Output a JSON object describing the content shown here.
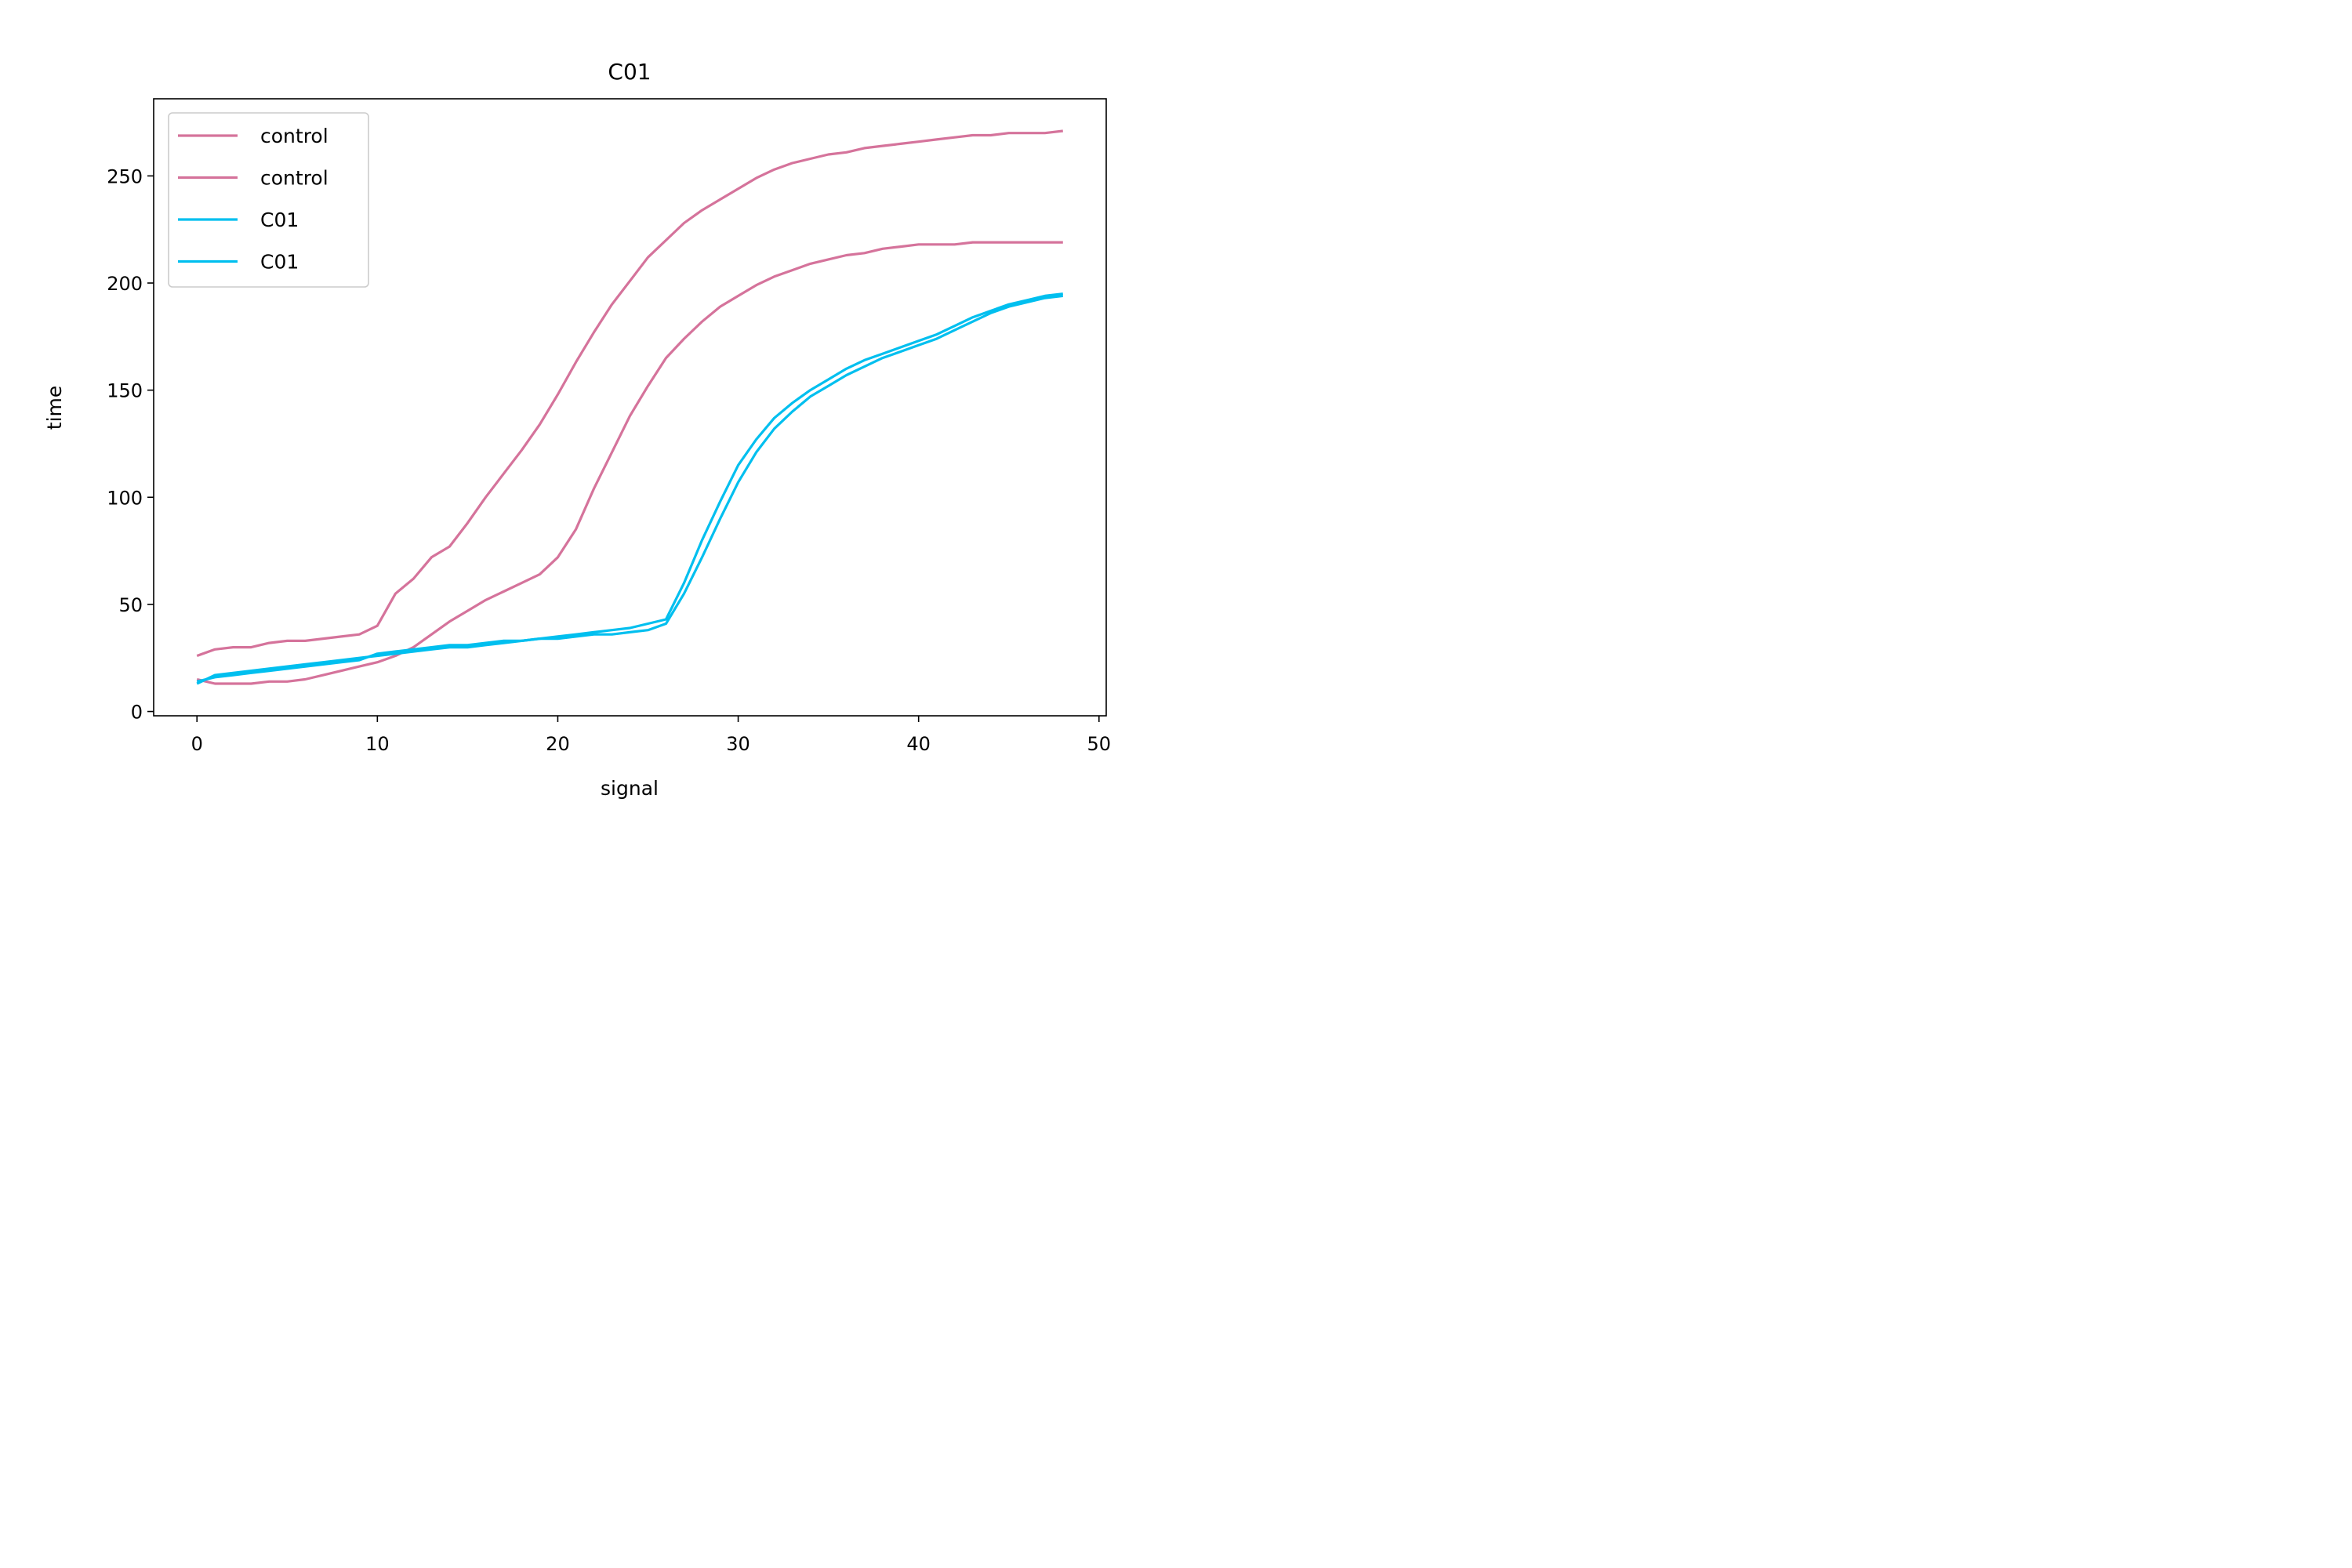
{
  "chart_data": {
    "type": "line",
    "title": "C01",
    "xlabel": "signal",
    "ylabel": "time",
    "xlim": [
      -2.4,
      50.4
    ],
    "ylim": [
      -2,
      286
    ],
    "xticks": [
      0,
      10,
      20,
      30,
      40,
      50
    ],
    "yticks": [
      0,
      50,
      100,
      150,
      200,
      250
    ],
    "grid": false,
    "legend_position": "top-left",
    "x": [
      0,
      1,
      2,
      3,
      4,
      5,
      6,
      7,
      8,
      9,
      10,
      11,
      12,
      13,
      14,
      15,
      16,
      17,
      18,
      19,
      20,
      21,
      22,
      23,
      24,
      25,
      26,
      27,
      28,
      29,
      30,
      31,
      32,
      33,
      34,
      35,
      36,
      37,
      38,
      39,
      40,
      41,
      42,
      43,
      44,
      45,
      46,
      47,
      48
    ],
    "series": [
      {
        "name": "control",
        "color": "#d5739b",
        "values": [
          26,
          29,
          30,
          30,
          32,
          33,
          33,
          34,
          35,
          36,
          40,
          55,
          62,
          72,
          77,
          88,
          100,
          111,
          122,
          134,
          148,
          163,
          177,
          190,
          201,
          212,
          220,
          228,
          234,
          239,
          244,
          249,
          253,
          256,
          258,
          260,
          261,
          263,
          264,
          265,
          266,
          267,
          268,
          269,
          269,
          270,
          270,
          270,
          271
        ]
      },
      {
        "name": "control",
        "color": "#d5739b",
        "values": [
          15,
          13,
          13,
          13,
          14,
          14,
          15,
          17,
          19,
          21,
          23,
          26,
          30,
          36,
          42,
          47,
          52,
          56,
          60,
          64,
          72,
          85,
          104,
          121,
          138,
          152,
          165,
          174,
          182,
          189,
          194,
          199,
          203,
          206,
          209,
          211,
          213,
          214,
          216,
          217,
          218,
          218,
          218,
          219,
          219,
          219,
          219,
          219,
          219
        ]
      },
      {
        "name": "C01",
        "color": "#00bfef",
        "values": [
          13,
          17,
          18,
          19,
          20,
          21,
          22,
          23,
          24,
          25,
          26,
          27,
          28,
          29,
          30,
          30,
          31,
          32,
          33,
          34,
          35,
          36,
          37,
          38,
          39,
          41,
          43,
          60,
          80,
          98,
          115,
          127,
          137,
          144,
          150,
          155,
          160,
          164,
          167,
          170,
          173,
          176,
          180,
          184,
          187,
          190,
          192,
          194,
          195
        ]
      },
      {
        "name": "C01",
        "color": "#00bfef",
        "values": [
          14,
          16,
          17,
          18,
          19,
          20,
          21,
          22,
          23,
          24,
          27,
          28,
          29,
          30,
          31,
          31,
          32,
          33,
          33,
          34,
          34,
          35,
          36,
          36,
          37,
          38,
          41,
          55,
          72,
          90,
          107,
          121,
          132,
          140,
          147,
          152,
          157,
          161,
          165,
          168,
          171,
          174,
          178,
          182,
          186,
          189,
          191,
          193,
          194
        ]
      }
    ]
  }
}
